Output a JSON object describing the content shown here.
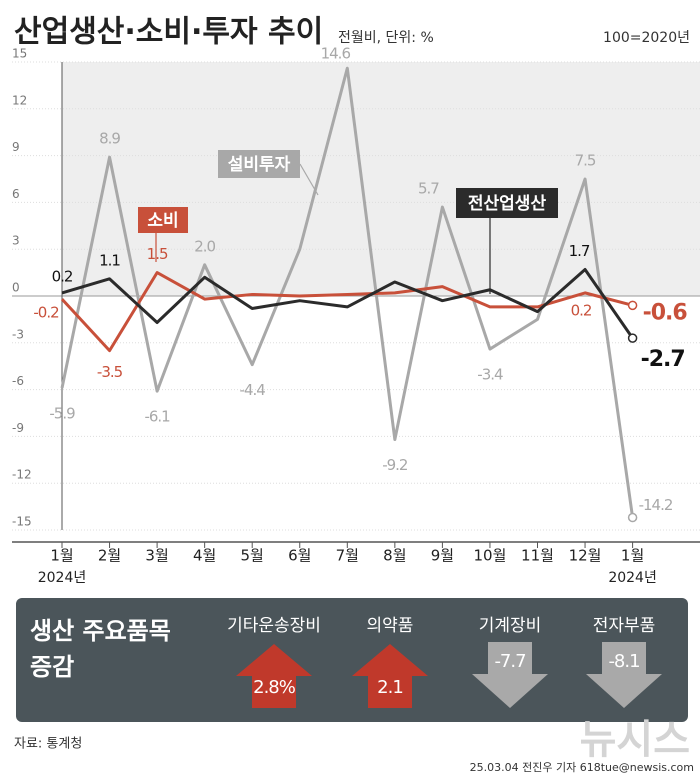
{
  "chart_data": {
    "type": "line",
    "title": "산업생산·소비·투자 추이",
    "subtitle": "전월비, 단위: %",
    "note": "100=2020년",
    "categories": [
      "1월",
      "2월",
      "3월",
      "4월",
      "5월",
      "6월",
      "7월",
      "8월",
      "9월",
      "10월",
      "11월",
      "12월",
      "1월"
    ],
    "x_sublabels": [
      "2024년",
      null,
      null,
      null,
      null,
      null,
      null,
      null,
      null,
      null,
      null,
      null,
      "2024년"
    ],
    "ylim": [
      -15,
      15
    ],
    "yticks": [
      -15,
      -12,
      -9,
      -6,
      -3,
      0,
      3,
      6,
      9,
      12,
      15
    ],
    "series": [
      {
        "name": "설비투자",
        "color": "#a8a8a8",
        "values": [
          -5.9,
          8.9,
          -6.1,
          2.0,
          -4.4,
          3.0,
          14.6,
          -9.2,
          5.7,
          -3.4,
          -1.5,
          7.5,
          -14.2
        ],
        "value_labels": [
          "-5.9",
          "8.9",
          "-6.1",
          "2.0",
          "-4.4",
          null,
          "14.6",
          "-9.2",
          "5.7",
          "-3.4",
          null,
          "7.5",
          "-14.2"
        ]
      },
      {
        "name": "소비",
        "color": "#c8503a",
        "values": [
          -0.2,
          -3.5,
          1.5,
          -0.2,
          0.1,
          0.0,
          0.1,
          0.2,
          0.6,
          -0.7,
          -0.7,
          0.2,
          -0.6
        ],
        "value_labels": [
          "-0.2",
          "-3.5",
          "1.5",
          null,
          null,
          null,
          null,
          null,
          null,
          null,
          null,
          "0.2",
          "-0.6"
        ]
      },
      {
        "name": "전산업생산",
        "color": "#2b2b2b",
        "values": [
          0.2,
          1.1,
          -1.7,
          1.2,
          -0.8,
          -0.3,
          -0.7,
          0.9,
          -0.3,
          0.4,
          -1.0,
          1.7,
          -2.7
        ],
        "value_labels": [
          "0.2",
          "1.1",
          null,
          null,
          null,
          null,
          null,
          null,
          null,
          null,
          null,
          "1.7",
          "-2.7"
        ]
      }
    ]
  },
  "panel": {
    "title_lines": [
      "생산 주요품목",
      "증감"
    ],
    "items": [
      {
        "name": "기타운송장비",
        "value": 2.8,
        "value_label": "2.8%"
      },
      {
        "name": "의약품",
        "value": 2.1,
        "value_label": "2.1"
      },
      {
        "name": "기계장비",
        "value": -7.7,
        "value_label": "-7.7"
      },
      {
        "name": "전자부품",
        "value": -8.1,
        "value_label": "-8.1"
      }
    ]
  },
  "source": "자료: 통계청",
  "credit": "25.03.04 전진우 기자 618tue@newsis.com",
  "logo": "뉴시스"
}
